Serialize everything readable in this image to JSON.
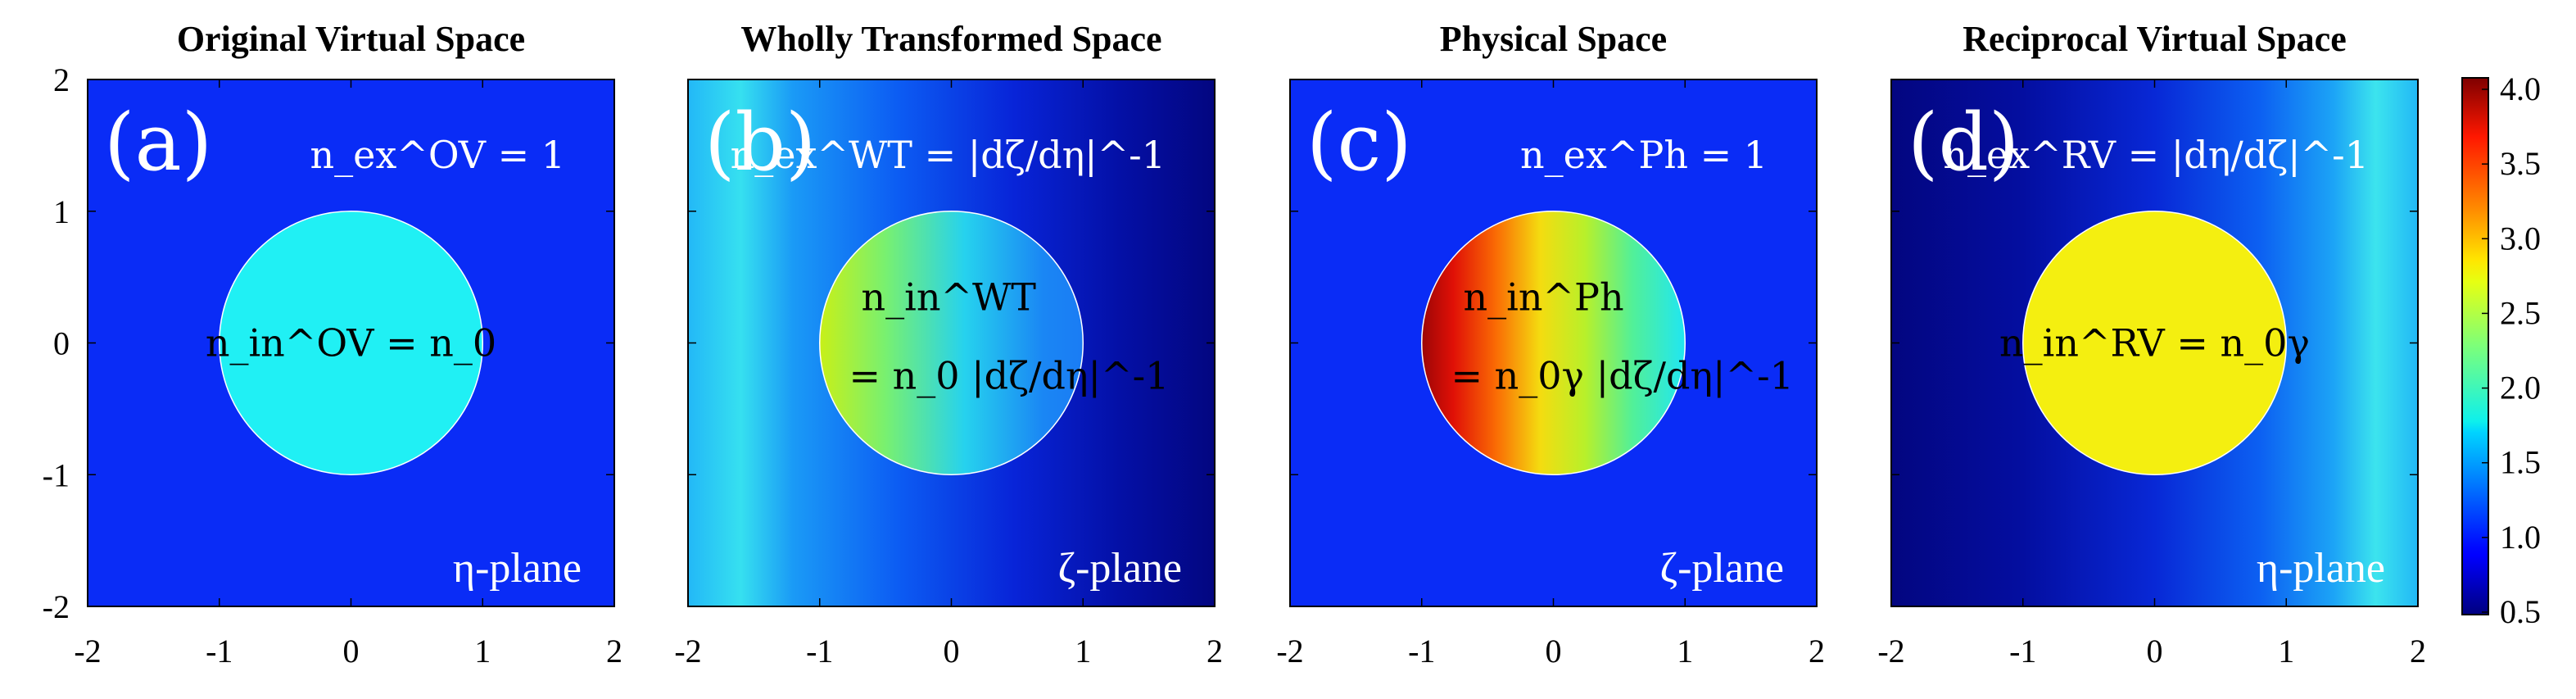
{
  "chart_data": [
    {
      "type": "heatmap",
      "title": "Original Virtual Space",
      "panel_label": "(a)",
      "plane_label": "η-plane",
      "exterior_equation": "n_ex^OV = 1",
      "interior_equation": "n_in^OV = n_0",
      "x_ticks": [
        "-2",
        "-1",
        "0",
        "1",
        "2"
      ],
      "y_ticks": [
        "2",
        "1",
        "0",
        "-1",
        "-2"
      ],
      "xlim": [
        -2,
        2
      ],
      "ylim": [
        -2,
        2
      ],
      "exterior_value": 1.0,
      "interior_value": 1.7,
      "circle_radius": 1
    },
    {
      "type": "heatmap",
      "title": "Wholly Transformed Space",
      "panel_label": "(b)",
      "plane_label": "ζ-plane",
      "exterior_equation": "n_ex^WT = |dζ/dη|^-1",
      "interior_equation_line1": "n_in^WT",
      "interior_equation_line2": "= n_0 |dζ/dη|^-1",
      "x_ticks": [
        "-2",
        "-1",
        "0",
        "1",
        "2"
      ],
      "xlim": [
        -2,
        2
      ],
      "ylim": [
        -2,
        2
      ],
      "circle_radius": 1
    },
    {
      "type": "heatmap",
      "title": "Physical Space",
      "panel_label": "(c)",
      "plane_label": "ζ-plane",
      "exterior_equation": "n_ex^Ph = 1",
      "interior_equation_line1": "n_in^Ph",
      "interior_equation_line2": "= n_0γ |dζ/dη|^-1",
      "x_ticks": [
        "-2",
        "-1",
        "0",
        "1",
        "2"
      ],
      "xlim": [
        -2,
        2
      ],
      "ylim": [
        -2,
        2
      ],
      "exterior_value": 1.0,
      "circle_radius": 1
    },
    {
      "type": "heatmap",
      "title": "Reciprocal Virtual Space",
      "panel_label": "(d)",
      "plane_label": "η-plane",
      "exterior_equation": "n_ex^RV = |dη/dζ|^-1",
      "interior_equation": "n_in^RV = n_0γ",
      "x_ticks": [
        "-2",
        "-1",
        "0",
        "1",
        "2"
      ],
      "xlim": [
        -2,
        2
      ],
      "ylim": [
        -2,
        2
      ],
      "interior_value": 2.8,
      "circle_radius": 1
    }
  ],
  "colorbar": {
    "min": 0.5,
    "max": 4.0,
    "ticks": [
      "4.0",
      "3.5",
      "3.0",
      "2.5",
      "2.0",
      "1.5",
      "1.0",
      "0.5"
    ],
    "colormap": "jet"
  },
  "colors": {
    "exterior_unity": "#0a2cf6",
    "dark_navy": "#03057e",
    "cyan_circle": "#20f0f4",
    "yellow_circle": "#f4ef10",
    "circle_outline": "#ffffff"
  }
}
